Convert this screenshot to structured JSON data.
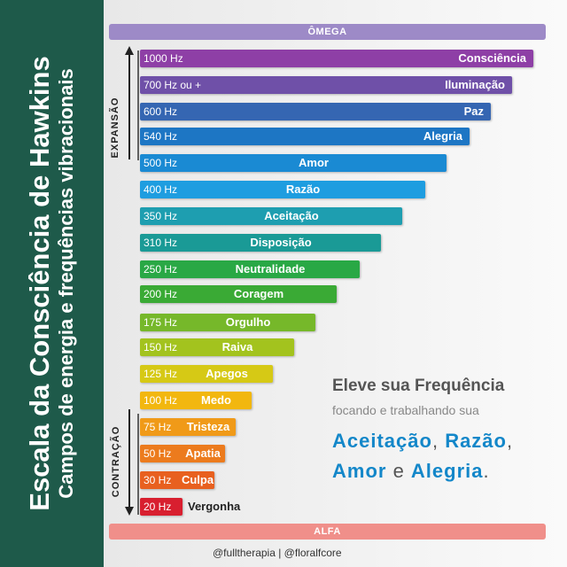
{
  "side": {
    "title": "Escala da Consciência de Hawkins",
    "subtitle": "Campos de energia e frequências vibracionais"
  },
  "top_band": "ÔMEGA",
  "bottom_band": "ALFA",
  "axis": {
    "up": "EXPANSÃO",
    "down": "CONTRAÇÃO"
  },
  "levels": [
    {
      "hz": "1000 Hz",
      "label": "Consciência",
      "color": "#8e3fa6"
    },
    {
      "hz": "700 Hz ou +",
      "label": "Iluminação",
      "color": "#6f50a8"
    },
    {
      "hz": "600 Hz",
      "label": "Paz",
      "color": "#3566b2"
    },
    {
      "hz": "540 Hz",
      "label": "Alegria",
      "color": "#1d76c4"
    },
    {
      "hz": "500 Hz",
      "label": "Amor",
      "color": "#1a8ad3"
    },
    {
      "hz": "400 Hz",
      "label": "Razão",
      "color": "#1e9de0"
    },
    {
      "hz": "350 Hz",
      "label": "Aceitação",
      "color": "#1e9eb0"
    },
    {
      "hz": "310 Hz",
      "label": "Disposição",
      "color": "#1a9a96"
    },
    {
      "hz": "250 Hz",
      "label": "Neutralidade",
      "color": "#29a845"
    },
    {
      "hz": "200 Hz",
      "label": "Coragem",
      "color": "#3aaa35"
    },
    {
      "hz": "175 Hz",
      "label": "Orgulho",
      "color": "#76b82a"
    },
    {
      "hz": "150 Hz",
      "label": "Raiva",
      "color": "#a3c31e"
    },
    {
      "hz": "125 Hz",
      "label": "Apegos",
      "color": "#d6c915"
    },
    {
      "hz": "100 Hz",
      "label": "Medo",
      "color": "#f2b70f"
    },
    {
      "hz": "75 Hz",
      "label": "Tristeza",
      "color": "#f09a18"
    },
    {
      "hz": "50 Hz",
      "label": "Apatia",
      "color": "#ec7b1d"
    },
    {
      "hz": "30 Hz",
      "label": "Culpa",
      "color": "#e8601f"
    },
    {
      "hz": "20 Hz",
      "label": "Vergonha",
      "color": "#d81f2f"
    }
  ],
  "message": {
    "title": "Eleve sua Frequência",
    "line2": "focando e trabalhando sua",
    "w1": "Aceitação",
    "comma1": ", ",
    "w2": "Razão",
    "comma2": ",",
    "w3": "Amor",
    "and": " e ",
    "w4": "Alegria",
    "period": "."
  },
  "footer": "@fulltherapia  |  @floralfcore"
}
